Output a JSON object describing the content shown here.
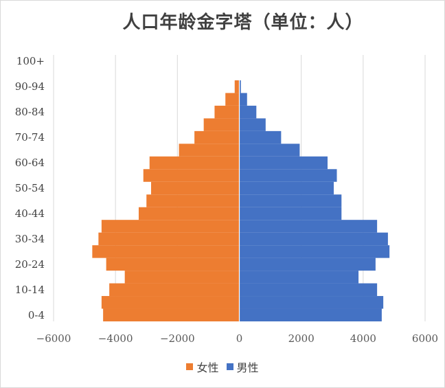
{
  "chart_data": {
    "type": "bar",
    "orientation": "horizontal",
    "title": "人口年龄金字塔（单位：人）",
    "categories": [
      "0-4",
      "5-9",
      "10-14",
      "15-19",
      "20-24",
      "25-29",
      "30-34",
      "35-39",
      "40-44",
      "45-49",
      "50-54",
      "55-59",
      "60-64",
      "65-69",
      "70-74",
      "75-79",
      "80-84",
      "85-89",
      "90-94",
      "95-99",
      "100+"
    ],
    "y_tick_labels": [
      "0-4",
      "10-14",
      "20-24",
      "30-34",
      "40-44",
      "50-54",
      "60-64",
      "70-74",
      "80-84",
      "90-94",
      "100+"
    ],
    "series": [
      {
        "name": "女性",
        "color": "#ED7D31",
        "values": [
          -4400,
          -4450,
          -4200,
          -3700,
          -4300,
          -4750,
          -4550,
          -4450,
          -3250,
          -3000,
          -2850,
          -3100,
          -2900,
          -1950,
          -1450,
          -1150,
          -800,
          -450,
          -150,
          0,
          0
        ]
      },
      {
        "name": "男性",
        "color": "#4472C4",
        "values": [
          4600,
          4650,
          4450,
          3850,
          4400,
          4850,
          4800,
          4450,
          3300,
          3300,
          3050,
          3150,
          2850,
          1950,
          1350,
          850,
          550,
          250,
          50,
          0,
          0
        ]
      }
    ],
    "xlim": [
      -6000,
      6000
    ],
    "x_ticks": [
      -6000,
      -4000,
      -2000,
      0,
      2000,
      4000,
      6000
    ],
    "x_tick_labels": [
      "−6000",
      "−4000",
      "−2000",
      "0",
      "2000",
      "4000",
      "6000"
    ],
    "grid": true,
    "legend_position": "bottom"
  }
}
